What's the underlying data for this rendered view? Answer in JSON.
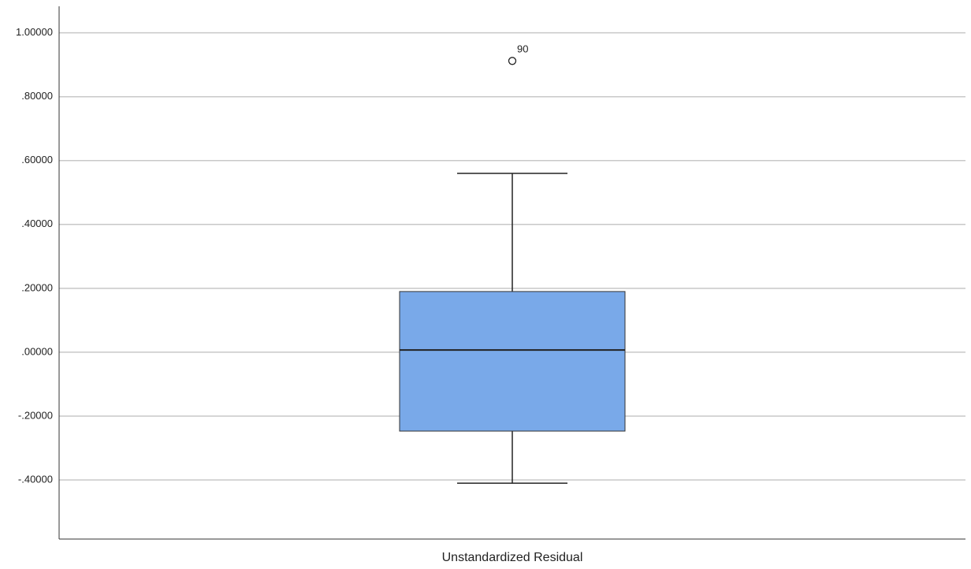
{
  "chart_data": {
    "type": "box",
    "categories": [
      "Unstandardized Residual"
    ],
    "boxes": [
      {
        "min": -0.41,
        "q1": -0.247,
        "median": 0.007,
        "q3": 0.19,
        "max": 0.56,
        "outliers": [
          {
            "value": 0.912,
            "label": "90"
          }
        ]
      }
    ],
    "color": "#79a9e9",
    "ylim": [
      -0.585,
      1.083
    ],
    "yticks": [
      {
        "value": -0.4,
        "label": "-.40000"
      },
      {
        "value": -0.2,
        "label": "-.20000"
      },
      {
        "value": 0,
        "label": ".00000"
      },
      {
        "value": 0.2,
        "label": ".20000"
      },
      {
        "value": 0.4,
        "label": ".40000"
      },
      {
        "value": 0.6,
        "label": ".60000"
      },
      {
        "value": 0.8,
        "label": ".80000"
      },
      {
        "value": 1.0,
        "label": "1.00000"
      }
    ],
    "grid": true
  }
}
